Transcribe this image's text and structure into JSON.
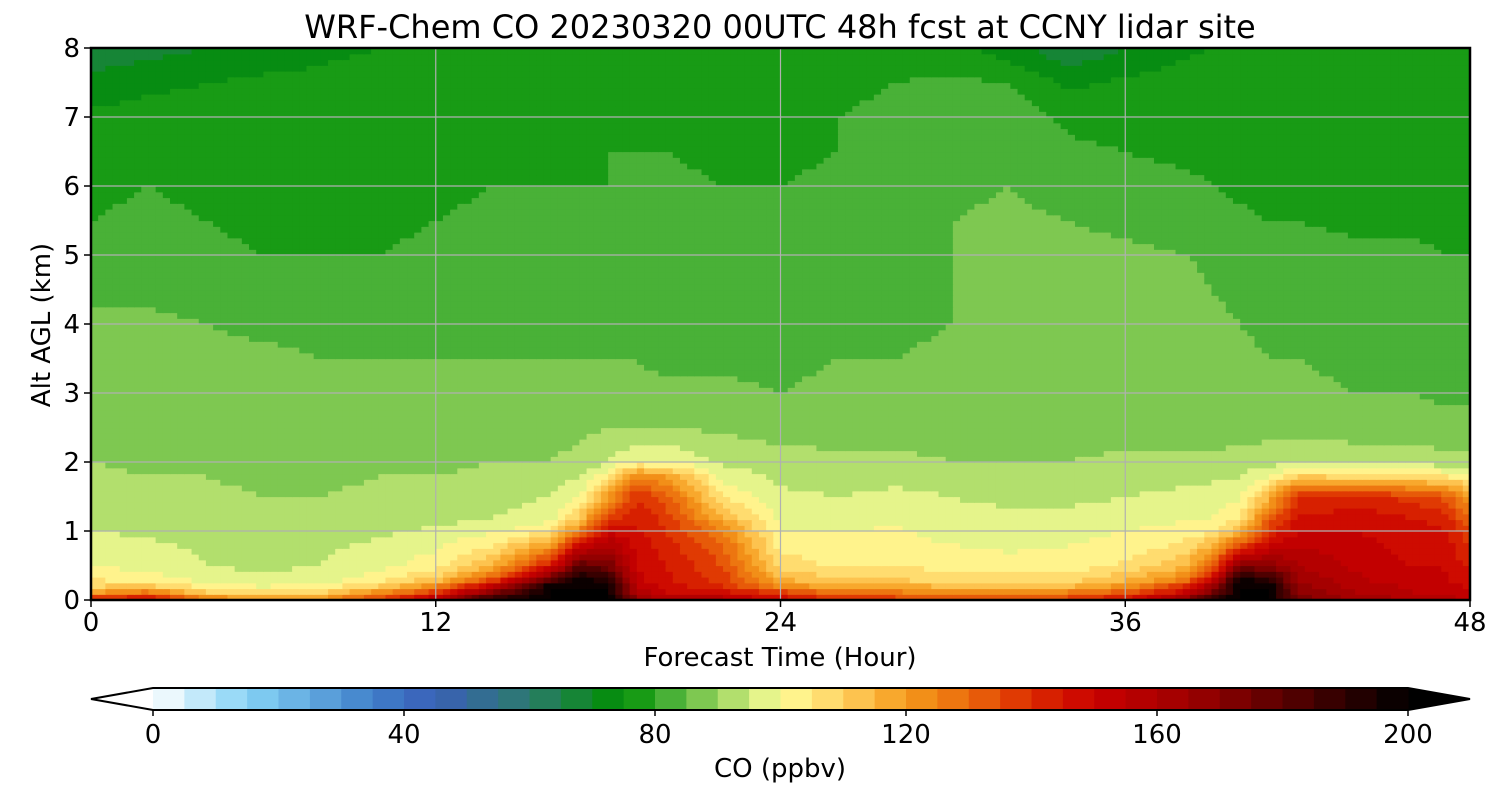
{
  "chart_data": {
    "type": "heatmap",
    "title": "WRF-Chem CO  20230320 00UTC 48h fcst at CCNY lidar site",
    "xlabel": "Forecast Time (Hour)",
    "ylabel": "Alt AGL (km)",
    "xlim": [
      0,
      48
    ],
    "ylim": [
      0,
      8
    ],
    "x_ticks": [
      0,
      12,
      24,
      36,
      48
    ],
    "y_ticks": [
      0,
      1,
      2,
      3,
      4,
      5,
      6,
      7,
      8
    ],
    "grid": true,
    "z_label": "CO  (ppbv)",
    "z_range": [
      0,
      200
    ],
    "z_ticks": [
      0,
      40,
      80,
      120,
      160,
      200
    ],
    "z_step": 5,
    "colorbar": {
      "orientation": "horizontal",
      "placement": "bottom",
      "extend": "both"
    },
    "colormap": [
      [
        0,
        "#ffffff"
      ],
      [
        15,
        "#86d3f5"
      ],
      [
        35,
        "#3f7fc9"
      ],
      [
        45,
        "#3a5fb8"
      ],
      [
        60,
        "#2b7a6c"
      ],
      [
        75,
        "#009000"
      ],
      [
        80,
        "#2fa52a"
      ],
      [
        90,
        "#98d45e"
      ],
      [
        100,
        "#ffff9a"
      ],
      [
        110,
        "#ffd060"
      ],
      [
        120,
        "#f59b1c"
      ],
      [
        130,
        "#ea6a0c"
      ],
      [
        140,
        "#dc2a00"
      ],
      [
        150,
        "#c90000"
      ],
      [
        165,
        "#9e0000"
      ],
      [
        180,
        "#5a0000"
      ],
      [
        200,
        "#000000"
      ]
    ],
    "x_hours": [
      0,
      2,
      4,
      6,
      8,
      10,
      12,
      14,
      16,
      17,
      18,
      19,
      20,
      22,
      24,
      26,
      28,
      30,
      32,
      34,
      36,
      38,
      39,
      40,
      41,
      42,
      44,
      46,
      47,
      48
    ],
    "z_levels_km": [
      0,
      0.1,
      0.2,
      0.3,
      0.5,
      0.8,
      1.0,
      1.2,
      1.5,
      1.8,
      2.0,
      2.5,
      3.0,
      3.5,
      4.0,
      4.5,
      5.0,
      5.5,
      6.0,
      6.5,
      7.0,
      7.5,
      8.0
    ],
    "co_ppbv_by_level": [
      [
        150,
        150,
        130,
        120,
        125,
        140,
        160,
        195,
        200,
        200,
        200,
        170,
        160,
        160,
        150,
        140,
        140,
        135,
        135,
        140,
        150,
        170,
        195,
        200,
        200,
        175,
        165,
        160,
        160,
        155
      ],
      [
        120,
        130,
        112,
        108,
        110,
        125,
        140,
        175,
        200,
        200,
        200,
        160,
        150,
        148,
        140,
        130,
        128,
        125,
        125,
        128,
        135,
        150,
        175,
        200,
        200,
        170,
        160,
        155,
        155,
        150
      ],
      [
        110,
        112,
        103,
        100,
        102,
        110,
        125,
        155,
        200,
        200,
        200,
        155,
        148,
        140,
        124,
        118,
        118,
        114,
        113,
        115,
        122,
        140,
        165,
        200,
        200,
        168,
        158,
        154,
        154,
        148
      ],
      [
        105,
        103,
        98,
        96,
        98,
        103,
        112,
        135,
        180,
        200,
        190,
        152,
        146,
        138,
        116,
        110,
        110,
        108,
        107,
        108,
        114,
        125,
        150,
        200,
        190,
        165,
        156,
        152,
        152,
        146
      ],
      [
        100,
        98,
        95,
        94,
        95,
        98,
        103,
        115,
        145,
        180,
        175,
        150,
        145,
        135,
        108,
        104,
        105,
        103,
        102,
        102,
        106,
        114,
        130,
        170,
        170,
        160,
        154,
        150,
        150,
        144
      ],
      [
        98,
        96,
        94,
        93,
        94,
        96,
        99,
        105,
        120,
        150,
        160,
        148,
        143,
        130,
        103,
        102,
        102,
        100,
        99,
        100,
        102,
        106,
        115,
        135,
        150,
        155,
        152,
        148,
        148,
        140
      ],
      [
        95,
        94,
        93,
        92,
        92,
        94,
        96,
        99,
        105,
        125,
        150,
        146,
        140,
        125,
        100,
        100,
        101,
        98,
        98,
        98,
        100,
        102,
        104,
        115,
        140,
        150,
        150,
        147,
        147,
        137
      ],
      [
        94,
        92,
        92,
        91,
        91,
        92,
        93,
        95,
        98,
        110,
        138,
        144,
        138,
        115,
        98,
        97,
        98,
        96,
        96,
        96,
        97,
        99,
        100,
        105,
        130,
        145,
        148,
        145,
        143,
        130
      ],
      [
        92,
        91,
        91,
        90,
        90,
        91,
        92,
        93,
        95,
        100,
        120,
        140,
        133,
        105,
        96,
        95,
        96,
        95,
        94,
        94,
        95,
        96,
        97,
        99,
        115,
        140,
        142,
        138,
        135,
        120
      ],
      [
        91,
        90,
        90,
        89,
        89,
        90,
        90,
        91,
        92,
        95,
        104,
        125,
        120,
        98,
        94,
        93,
        94,
        93,
        92,
        92,
        93,
        94,
        94,
        95,
        100,
        110,
        108,
        106,
        105,
        103
      ],
      [
        90,
        89,
        89,
        88,
        88,
        89,
        89,
        90,
        90,
        91,
        95,
        100,
        100,
        94,
        92,
        91,
        91,
        90,
        90,
        90,
        91,
        91,
        91,
        92,
        93,
        94,
        94,
        93,
        92,
        92
      ],
      [
        89,
        89,
        88,
        88,
        88,
        88,
        88,
        89,
        89,
        89,
        90,
        90,
        90,
        89,
        88,
        88,
        88,
        88,
        88,
        88,
        88,
        88,
        88,
        88,
        88,
        88,
        87,
        87,
        87,
        87
      ],
      [
        88,
        88,
        87,
        87,
        87,
        87,
        87,
        86,
        87,
        87,
        87,
        86,
        86,
        86,
        85,
        86,
        86,
        87,
        87,
        88,
        88,
        88,
        87,
        87,
        86,
        86,
        85,
        85,
        84,
        84
      ],
      [
        87,
        87,
        86,
        86,
        85,
        85,
        85,
        85,
        85,
        85,
        85,
        85,
        84,
        84,
        84,
        85,
        85,
        86,
        87,
        88,
        89,
        88,
        86,
        86,
        85,
        85,
        84,
        84,
        83,
        83
      ],
      [
        86,
        86,
        85,
        84,
        84,
        83,
        83,
        83,
        83,
        83,
        83,
        83,
        83,
        82,
        82,
        83,
        84,
        85,
        86,
        88,
        89,
        88,
        86,
        85,
        84,
        84,
        83,
        83,
        82,
        82
      ],
      [
        84,
        84,
        83,
        82,
        82,
        81,
        82,
        82,
        82,
        82,
        82,
        82,
        82,
        82,
        82,
        82,
        83,
        85,
        86,
        87,
        88,
        87,
        85,
        84,
        83,
        83,
        82,
        82,
        81,
        81
      ],
      [
        82,
        82,
        81,
        80,
        80,
        80,
        81,
        81,
        82,
        83,
        83,
        82,
        82,
        82,
        82,
        82,
        83,
        85,
        86,
        86,
        86,
        85,
        84,
        83,
        82,
        82,
        81,
        81,
        80,
        80
      ],
      [
        80,
        81,
        80,
        79,
        79,
        79,
        80,
        81,
        81,
        82,
        82,
        82,
        82,
        81,
        81,
        82,
        83,
        85,
        86,
        85,
        84,
        83,
        82,
        81,
        80,
        80,
        79,
        79,
        79,
        79
      ],
      [
        79,
        80,
        79,
        78,
        78,
        78,
        79,
        80,
        80,
        80,
        80,
        81,
        81,
        80,
        80,
        81,
        82,
        84,
        85,
        83,
        82,
        81,
        80,
        79,
        78,
        78,
        78,
        78,
        78,
        78
      ],
      [
        78,
        79,
        78,
        78,
        78,
        78,
        79,
        79,
        79,
        79,
        80,
        80,
        80,
        79,
        79,
        80,
        81,
        83,
        84,
        81,
        80,
        79,
        79,
        78,
        78,
        78,
        77,
        77,
        77,
        77
      ],
      [
        76,
        77,
        77,
        77,
        77,
        78,
        78,
        78,
        78,
        78,
        79,
        79,
        79,
        78,
        79,
        80,
        81,
        82,
        83,
        79,
        78,
        78,
        78,
        77,
        77,
        77,
        77,
        77,
        77,
        77
      ],
      [
        72,
        74,
        75,
        76,
        76,
        77,
        77,
        77,
        77,
        77,
        78,
        78,
        78,
        78,
        78,
        79,
        80,
        81,
        80,
        74,
        76,
        77,
        77,
        77,
        77,
        77,
        77,
        77,
        77,
        77
      ],
      [
        66,
        68,
        70,
        72,
        74,
        75,
        76,
        76,
        76,
        76,
        76,
        77,
        77,
        77,
        77,
        78,
        78,
        77,
        72,
        66,
        70,
        74,
        75,
        76,
        76,
        76,
        76,
        76,
        76,
        76
      ]
    ]
  }
}
